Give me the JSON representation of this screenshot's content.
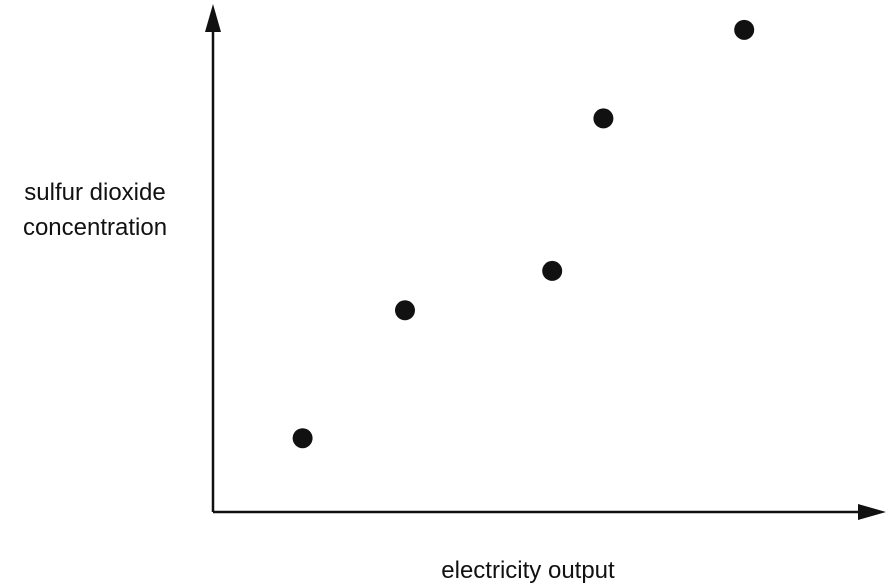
{
  "chart_data": {
    "type": "scatter",
    "title": "",
    "xlabel": "electricity output",
    "ylabel_lines": [
      "sulfur dioxide",
      "concentration"
    ],
    "xlim": [
      0,
      10
    ],
    "ylim": [
      0,
      10
    ],
    "grid": false,
    "ticks": false,
    "series": [
      {
        "x": [
          1.4,
          3.0,
          5.3,
          6.1,
          8.3
        ],
        "y": [
          1.5,
          4.1,
          4.9,
          8.0,
          9.8
        ]
      }
    ]
  }
}
